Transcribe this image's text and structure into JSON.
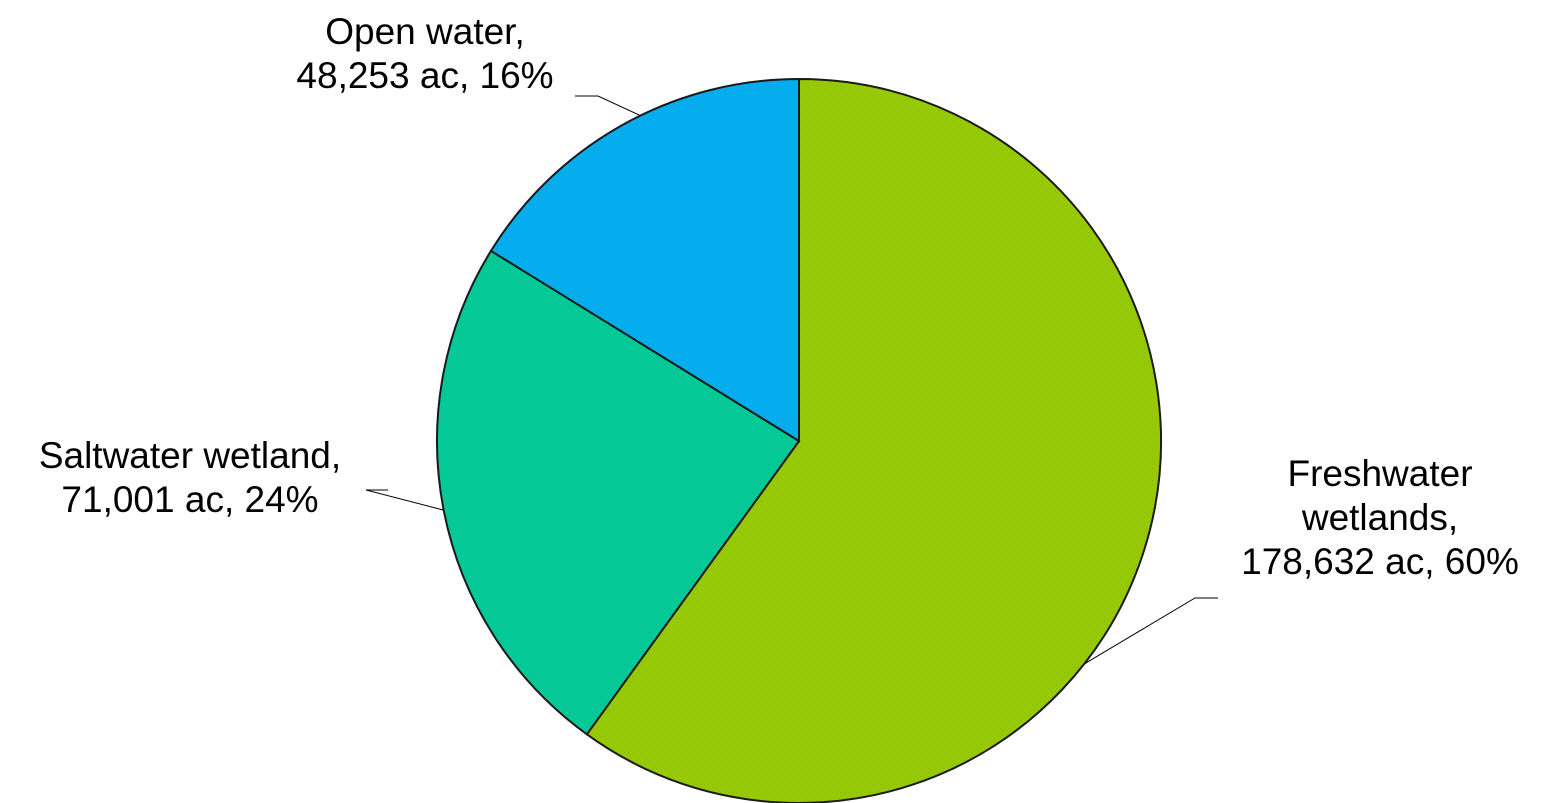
{
  "chart_data": {
    "type": "pie",
    "title": "",
    "slices": [
      {
        "name": "Freshwater wetlands",
        "acres": 178632,
        "percent": 60,
        "label_lines": [
          "Freshwater",
          "wetlands,",
          "178,632 ac, 60%"
        ],
        "color": "#99CC00"
      },
      {
        "name": "Saltwater wetland",
        "acres": 71001,
        "percent": 24,
        "label_lines": [
          "Saltwater wetland,",
          "71,001 ac, 24%"
        ],
        "color": "#00CC99"
      },
      {
        "name": "Open water",
        "acres": 48253,
        "percent": 16,
        "label_lines": [
          "Open water,",
          "48,253 ac, 16%"
        ],
        "color": "#00B0F0"
      }
    ],
    "start_angle": "12 o'clock",
    "direction": "clockwise",
    "legend": "none",
    "outline_color": "#1a1a1a"
  }
}
